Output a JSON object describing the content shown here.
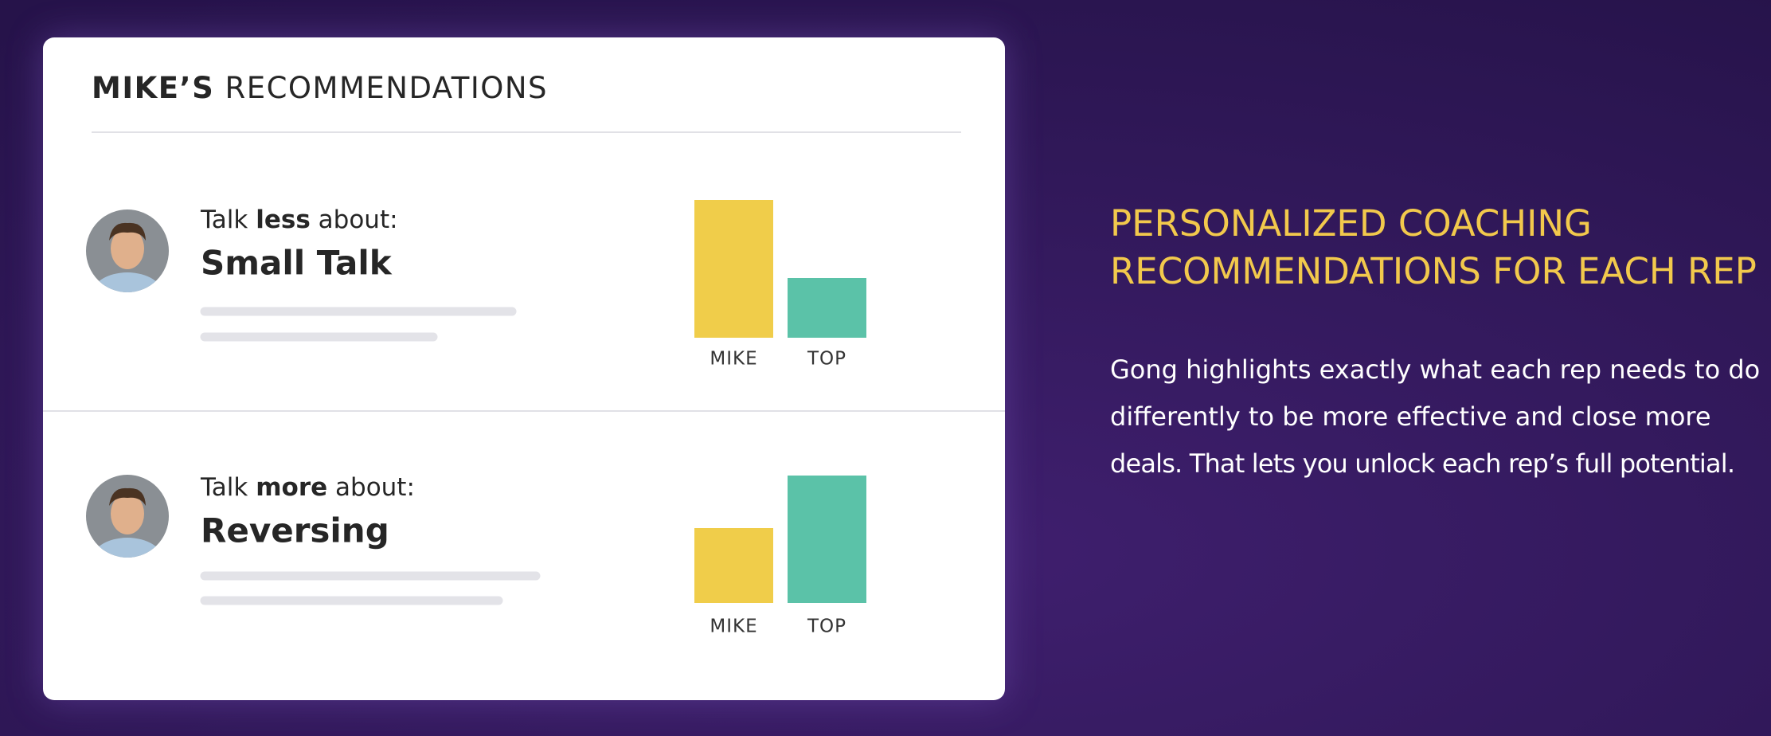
{
  "card": {
    "title": {
      "bold": "MIKE’S",
      "rest": "RECOMMENDATIONS"
    },
    "rows": [
      {
        "prefix": "Talk",
        "emphasis": "less",
        "suffix": "about:",
        "topic": "Small Talk",
        "chart_data": {
          "type": "bar",
          "categories": [
            "MIKE",
            "TOP"
          ],
          "values": [
            173,
            75
          ],
          "colors": [
            "#f0cd4a",
            "#5bc2a8"
          ],
          "ylim": [
            0,
            180
          ]
        }
      },
      {
        "prefix": "Talk",
        "emphasis": "more",
        "suffix": "about:",
        "topic": "Reversing",
        "chart_data": {
          "type": "bar",
          "categories": [
            "MIKE",
            "TOP"
          ],
          "values": [
            94,
            160
          ],
          "colors": [
            "#f0cd4a",
            "#5bc2a8"
          ],
          "ylim": [
            0,
            180
          ]
        }
      }
    ]
  },
  "side": {
    "heading": [
      "PERSONALIZED COACHING",
      "RECOMMENDATIONS FOR EACH REP"
    ],
    "body": [
      "Gong highlights exactly what each rep needs to do",
      "differently to be more effective and close more",
      "deals. That lets you unlock each rep’s full potential."
    ]
  }
}
